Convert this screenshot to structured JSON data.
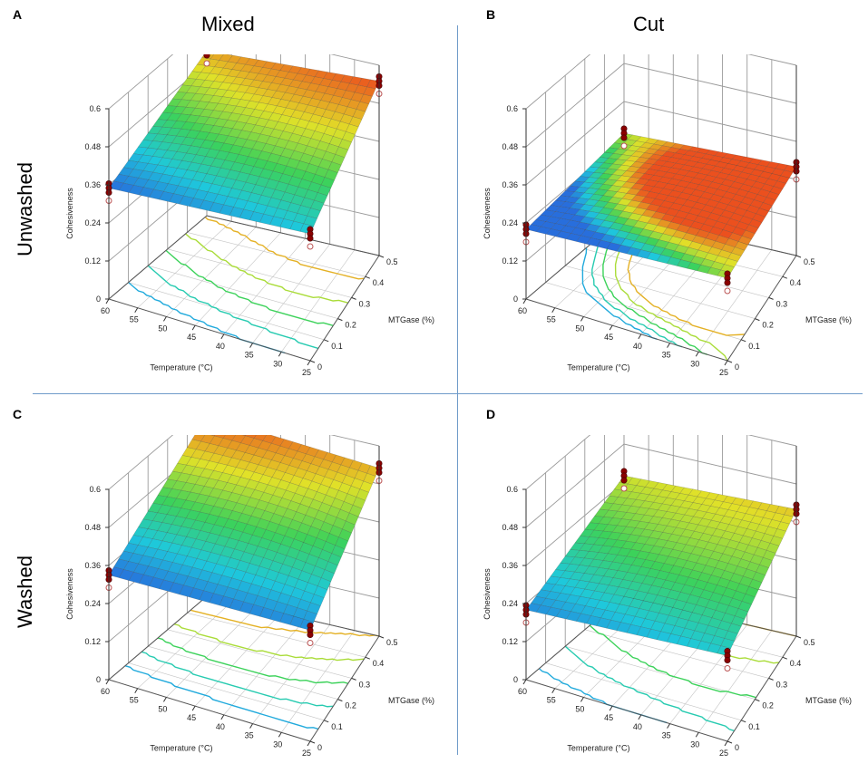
{
  "figure": {
    "column_headers": [
      "Mixed",
      "Cut"
    ],
    "row_headers": [
      "Unwashed",
      "Washed"
    ]
  },
  "chart_data": [
    {
      "panel": "A",
      "type": "surface3d",
      "title": "",
      "xlabel": "Temperature (°C)",
      "ylabel": "MTGase (%)",
      "zlabel": "Cohesiveness",
      "x_ticks": [
        "60",
        "55",
        "50",
        "45",
        "40",
        "35",
        "30",
        "25"
      ],
      "y_ticks": [
        "0",
        "0.1",
        "0.2",
        "0.3",
        "0.4",
        "0.5"
      ],
      "z_ticks": [
        "0",
        "0.12",
        "0.24",
        "0.36",
        "0.48",
        "0.6"
      ],
      "xlim": [
        25,
        60
      ],
      "ylim": [
        0,
        0.5
      ],
      "zlim": [
        0,
        0.6
      ],
      "corner_values": {
        "T60_M0": 0.35,
        "T25_M0": 0.4,
        "T60_M05": 0.52,
        "T25_M05": 0.55
      },
      "color_low": 0.35,
      "color_high": 0.55
    },
    {
      "panel": "B",
      "type": "surface3d",
      "title": "",
      "xlabel": "Temperature (°C)",
      "ylabel": "MTGase (%)",
      "zlabel": "Cohesiveness",
      "x_ticks": [
        "60",
        "55",
        "50",
        "45",
        "40",
        "35",
        "30",
        "25"
      ],
      "y_ticks": [
        "0",
        "0.1",
        "0.2",
        "0.3",
        "0.4",
        "0.5"
      ],
      "z_ticks": [
        "0",
        "0.12",
        "0.24",
        "0.36",
        "0.48",
        "0.6"
      ],
      "xlim": [
        25,
        60
      ],
      "ylim": [
        0,
        0.5
      ],
      "zlim": [
        0,
        0.6
      ],
      "corner_values": {
        "T60_M0": 0.22,
        "T25_M0": 0.26,
        "T60_M05": 0.26,
        "T25_M05": 0.28
      },
      "color_low": 0.24,
      "color_high": 0.27
    },
    {
      "panel": "C",
      "type": "surface3d",
      "title": "",
      "xlabel": "Temperature (°C)",
      "ylabel": "MTGase (%)",
      "zlabel": "Cohesiveness",
      "x_ticks": [
        "60",
        "55",
        "50",
        "45",
        "40",
        "35",
        "30",
        "25"
      ],
      "y_ticks": [
        "0",
        "0.1",
        "0.2",
        "0.3",
        "0.4",
        "0.5"
      ],
      "z_ticks": [
        "0",
        "0.12",
        "0.24",
        "0.36",
        "0.48",
        "0.6"
      ],
      "xlim": [
        25,
        60
      ],
      "ylim": [
        0,
        0.5
      ],
      "zlim": [
        0,
        0.6
      ],
      "corner_values": {
        "T60_M0": 0.33,
        "T25_M0": 0.35,
        "T60_M05": 0.57,
        "T25_M05": 0.53
      },
      "color_low": 0.33,
      "color_high": 0.57
    },
    {
      "panel": "D",
      "type": "surface3d",
      "title": "",
      "xlabel": "Temperature (°C)",
      "ylabel": "MTGase (%)",
      "zlabel": "Cohesiveness",
      "x_ticks": [
        "60",
        "55",
        "50",
        "45",
        "40",
        "35",
        "30",
        "25"
      ],
      "y_ticks": [
        "0",
        "0.1",
        "0.2",
        "0.3",
        "0.4",
        "0.5"
      ],
      "z_ticks": [
        "0",
        "0.12",
        "0.24",
        "0.36",
        "0.48",
        "0.6"
      ],
      "xlim": [
        25,
        60
      ],
      "ylim": [
        0,
        0.5
      ],
      "zlim": [
        0,
        0.6
      ],
      "corner_values": {
        "T60_M0": 0.22,
        "T25_M0": 0.27,
        "T60_M05": 0.38,
        "T25_M05": 0.4
      },
      "color_low": 0.2,
      "color_high": 0.45
    }
  ],
  "colors": {
    "divider": "#6f9bc9",
    "axis": "#333333",
    "grid": "#9a9a9a",
    "marker": "#8b0000"
  }
}
